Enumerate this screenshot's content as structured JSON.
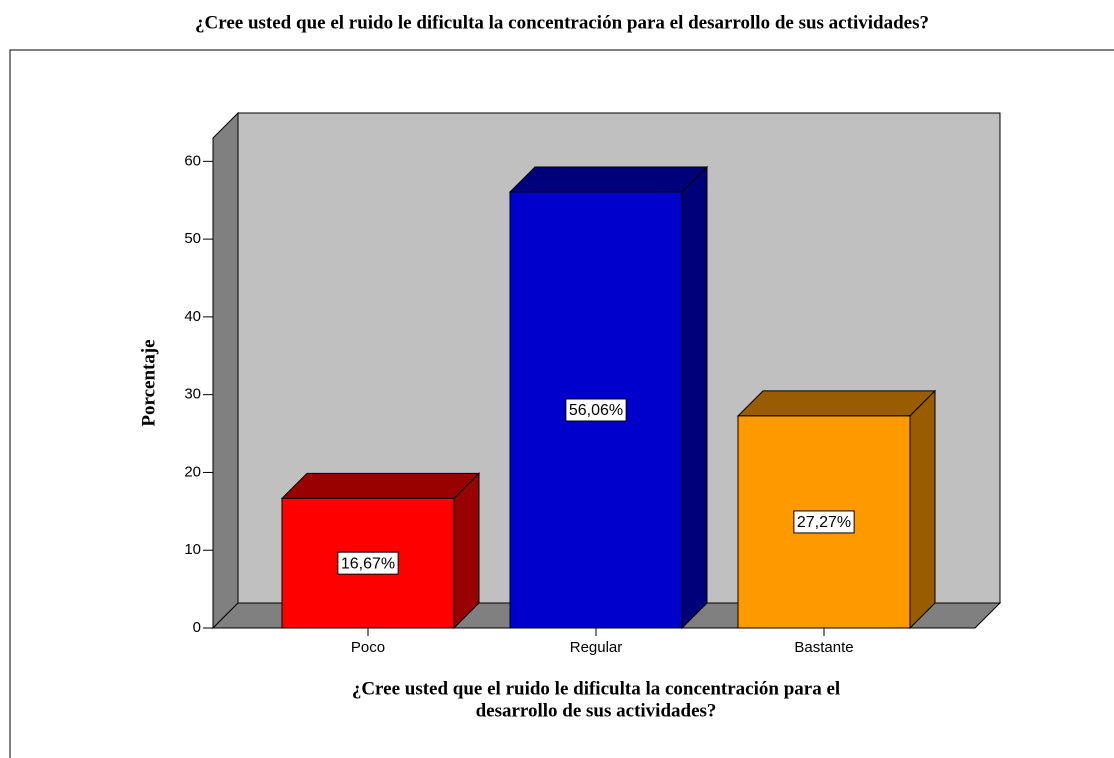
{
  "chart_data": {
    "type": "bar3d",
    "title": "¿Cree usted que el ruido le dificulta la concentración para el desarrollo de sus actividades?",
    "xlabel": [
      "¿Cree usted que el ruido le dificulta la concentración para el",
      "desarrollo de sus actividades?"
    ],
    "ylabel": "Porcentaje",
    "categories": [
      "Poco",
      "Regular",
      "Bastante"
    ],
    "values": [
      16.67,
      56.06,
      27.27
    ],
    "value_labels": [
      "16,67%",
      "56,06%",
      "27,27%"
    ],
    "colors": [
      "#ff0000",
      "#0000cc",
      "#ff9900"
    ],
    "ylim": [
      0,
      63
    ],
    "yticks": [
      0,
      10,
      20,
      30,
      40,
      50,
      60
    ]
  }
}
